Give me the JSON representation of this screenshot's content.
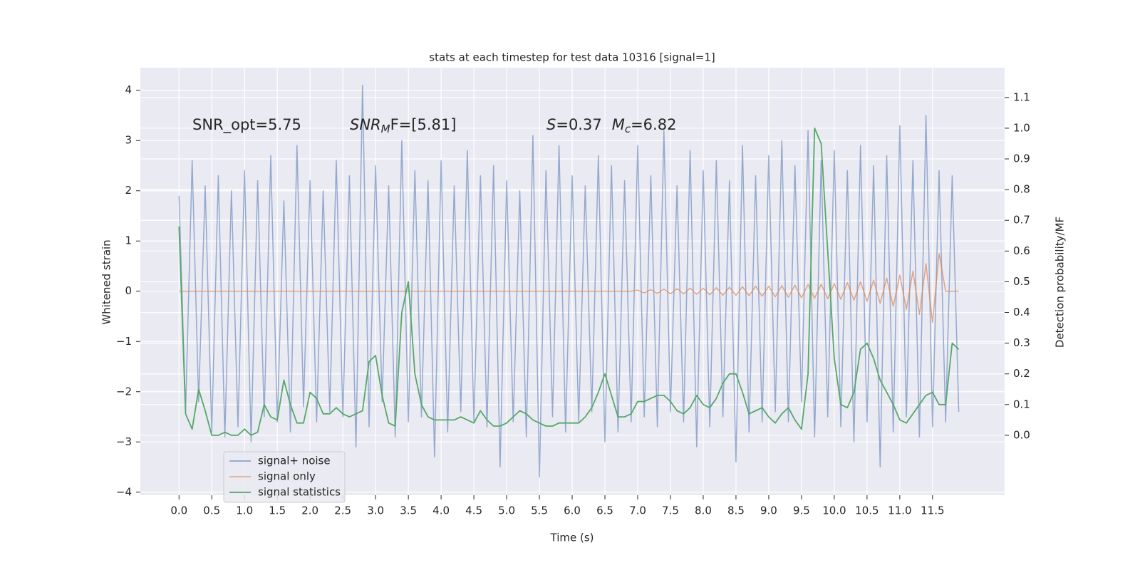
{
  "chart_data": {
    "type": "line",
    "title": "stats at each timestep for test data 10316 [signal=1]",
    "xlabel": "Time (s)",
    "ylabel": "Whitened strain",
    "y2label": "Detection probability/MF",
    "annotations": [
      {
        "parts": [
          "SNR_opt=5.75"
        ]
      },
      {
        "parts": [
          "SNR",
          "M",
          "F=[5.81]"
        ]
      },
      {
        "parts": [
          "S",
          "=0.37",
          "M",
          "c",
          "=6.82"
        ]
      }
    ],
    "grid": true,
    "legend": "lower left",
    "xlim": [
      -0.59,
      12.6
    ],
    "ylim": [
      -4.06,
      4.45
    ],
    "y2lim": [
      -0.195,
      1.197
    ],
    "xticks": [
      {
        "value": 0,
        "label": "0.0"
      },
      0.5,
      {
        "value": 1,
        "label": "1.0"
      },
      1.5,
      {
        "value": 2,
        "label": "2.0"
      },
      2.5,
      {
        "value": 3,
        "label": "3.0"
      },
      3.5,
      {
        "value": 4,
        "label": "4.0"
      },
      4.5,
      {
        "value": 5,
        "label": "5.0"
      },
      5.5,
      {
        "value": 6,
        "label": "6.0"
      },
      6.5,
      {
        "value": 7,
        "label": "7.0"
      },
      7.5,
      {
        "value": 8,
        "label": "8.0"
      },
      8.5,
      {
        "value": 9,
        "label": "9.0"
      },
      9.5,
      {
        "value": 10,
        "label": "10.0"
      },
      10.5,
      {
        "value": 11,
        "label": "11.0"
      },
      11.5
    ],
    "yticks": [
      {
        "value": -4,
        "label": "−4"
      },
      {
        "value": -3,
        "label": "−3"
      },
      {
        "value": -2,
        "label": "−2"
      },
      {
        "value": -1,
        "label": "−1"
      },
      0,
      1,
      2,
      3,
      4
    ],
    "y2ticks": [
      {
        "value": 0,
        "label": "0.0"
      },
      0.1,
      0.2,
      0.3,
      0.4,
      0.5,
      0.6,
      0.7,
      0.8,
      0.9,
      {
        "value": 1,
        "label": "1.0"
      },
      1.1
    ],
    "x": [
      0,
      0.1,
      0.2,
      0.3,
      0.4,
      0.5,
      0.6,
      0.7,
      0.8,
      0.9,
      1,
      1.1,
      1.2,
      1.3,
      1.4,
      1.5,
      1.6,
      1.7,
      1.8,
      1.9,
      2,
      2.1,
      2.2,
      2.3,
      2.4,
      2.5,
      2.6,
      2.7,
      2.8,
      2.9,
      3,
      3.1,
      3.2,
      3.3,
      3.4,
      3.5,
      3.6,
      3.7,
      3.8,
      3.9,
      4,
      4.1,
      4.2,
      4.3,
      4.4,
      4.5,
      4.6,
      4.7,
      4.8,
      4.9,
      5,
      5.1,
      5.2,
      5.3,
      5.4,
      5.5,
      5.6,
      5.7,
      5.8,
      5.9,
      6,
      6.1,
      6.2,
      6.3,
      6.4,
      6.5,
      6.6,
      6.7,
      6.8,
      6.9,
      7,
      7.1,
      7.2,
      7.3,
      7.4,
      7.5,
      7.6,
      7.7,
      7.8,
      7.9,
      8,
      8.1,
      8.2,
      8.3,
      8.4,
      8.5,
      8.6,
      8.7,
      8.8,
      8.9,
      9,
      9.1,
      9.2,
      9.3,
      9.4,
      9.5,
      9.6,
      9.7,
      9.8,
      9.9,
      10,
      10.1,
      10.2,
      10.3,
      10.4,
      10.5,
      10.6,
      10.7,
      10.8,
      10.9,
      11,
      11.1,
      11.2,
      11.3,
      11.4,
      11.5,
      11.6,
      11.7,
      11.8,
      11.9
    ],
    "series": [
      {
        "name": "signal+ noise",
        "color": "#4c72b0",
        "axis": "y",
        "values": [
          1.9,
          -2.4,
          2.6,
          -2.2,
          2.1,
          -2.8,
          2.3,
          -2.9,
          2.0,
          -2.7,
          2.4,
          -3.0,
          2.2,
          -2.5,
          2.7,
          -2.6,
          1.8,
          -2.8,
          2.9,
          -2.3,
          2.2,
          -2.6,
          2.0,
          -2.4,
          2.6,
          -2.5,
          2.3,
          -3.1,
          4.1,
          -2.7,
          2.5,
          -2.2,
          2.1,
          -2.9,
          3.0,
          -2.6,
          2.4,
          -2.5,
          2.2,
          -3.3,
          2.6,
          -2.8,
          2.1,
          -2.4,
          2.8,
          -2.6,
          2.3,
          -2.7,
          2.5,
          -3.5,
          2.2,
          -2.6,
          2.0,
          -2.9,
          3.1,
          -3.7,
          2.4,
          -2.5,
          2.9,
          -2.8,
          2.3,
          -2.6,
          2.1,
          -2.4,
          2.7,
          -3.0,
          2.5,
          -2.8,
          2.2,
          -2.6,
          2.9,
          -2.5,
          2.3,
          -2.7,
          3.2,
          -2.4,
          2.1,
          -2.6,
          2.8,
          -3.1,
          2.4,
          -2.7,
          2.6,
          -2.5,
          2.2,
          -3.4,
          2.9,
          -2.8,
          2.3,
          -2.6,
          2.7,
          -2.4,
          3.0,
          -2.6,
          2.5,
          -2.2,
          3.2,
          -2.9,
          2.6,
          -2.5,
          2.8,
          -2.7,
          2.4,
          -3.0,
          2.9,
          -2.6,
          2.5,
          -3.5,
          2.7,
          -2.8,
          3.3,
          -2.5,
          2.6,
          -2.9,
          3.5,
          -2.7,
          2.4,
          -2.6,
          2.3,
          -2.4
        ]
      },
      {
        "name": "signal only",
        "color": "#dd8452",
        "axis": "y",
        "values": [
          0,
          0,
          0,
          0,
          0,
          0,
          0,
          0,
          0,
          0,
          0,
          0,
          0,
          0,
          0,
          0,
          0,
          0,
          0,
          0,
          0,
          0,
          0,
          0,
          0,
          0,
          0,
          0,
          0,
          0,
          0,
          0,
          0,
          0,
          0,
          0,
          0,
          0,
          0,
          0,
          0,
          0,
          0,
          0,
          0,
          0,
          0,
          0,
          0,
          0,
          0,
          0,
          0,
          0,
          0,
          0,
          0,
          0,
          0,
          0,
          0,
          0,
          0,
          0,
          0,
          0,
          0,
          0,
          0,
          0,
          0.02,
          -0.03,
          0.03,
          -0.04,
          0.04,
          -0.05,
          0.05,
          -0.05,
          0.06,
          -0.06,
          0.06,
          -0.07,
          0.07,
          -0.08,
          0.08,
          -0.08,
          0.09,
          -0.09,
          0.1,
          -0.1,
          0.1,
          -0.11,
          0.11,
          -0.12,
          0.12,
          -0.13,
          0.13,
          -0.14,
          0.14,
          -0.15,
          0.15,
          -0.16,
          0.17,
          -0.18,
          0.19,
          -0.2,
          0.22,
          -0.24,
          0.26,
          -0.3,
          0.32,
          -0.36,
          0.4,
          -0.46,
          0.55,
          -0.62,
          0.75,
          0,
          0,
          0
        ]
      },
      {
        "name": "signal statistics",
        "color": "#55a868",
        "axis": "y2",
        "values": [
          0.68,
          0.07,
          0.02,
          0.15,
          0.08,
          0,
          0,
          0.01,
          0,
          0,
          0.02,
          0,
          0.01,
          0.1,
          0.06,
          0.05,
          0.18,
          0.1,
          0.04,
          0.04,
          0.14,
          0.12,
          0.07,
          0.07,
          0.09,
          0.07,
          0.06,
          0.07,
          0.08,
          0.24,
          0.26,
          0.13,
          0.04,
          0.03,
          0.4,
          0.5,
          0.2,
          0.1,
          0.06,
          0.05,
          0.05,
          0.05,
          0.05,
          0.06,
          0.05,
          0.04,
          0.08,
          0.05,
          0.03,
          0.03,
          0.04,
          0.06,
          0.08,
          0.07,
          0.05,
          0.04,
          0.03,
          0.03,
          0.04,
          0.04,
          0.04,
          0.04,
          0.06,
          0.09,
          0.14,
          0.2,
          0.13,
          0.06,
          0.06,
          0.07,
          0.11,
          0.11,
          0.12,
          0.13,
          0.13,
          0.11,
          0.08,
          0.07,
          0.09,
          0.13,
          0.1,
          0.09,
          0.12,
          0.17,
          0.2,
          0.2,
          0.14,
          0.07,
          0.08,
          0.09,
          0.06,
          0.04,
          0.07,
          0.09,
          0.05,
          0.02,
          0.2,
          1.0,
          0.95,
          0.6,
          0.25,
          0.1,
          0.09,
          0.14,
          0.28,
          0.3,
          0.25,
          0.18,
          0.14,
          0.1,
          0.05,
          0.04,
          0.07,
          0.1,
          0.13,
          0.14,
          0.1,
          0.1,
          0.3,
          0.28
        ]
      }
    ]
  }
}
